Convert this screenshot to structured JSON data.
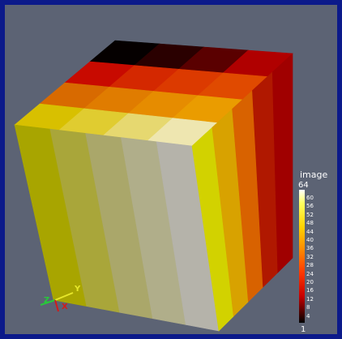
{
  "colorbar": {
    "title": "image",
    "max_label": "64",
    "min_label": "1",
    "ticks": [
      "60",
      "56",
      "52",
      "48",
      "44",
      "40",
      "36",
      "32",
      "28",
      "24",
      "20",
      "16",
      "12",
      "8",
      "4"
    ],
    "range": [
      1,
      64
    ]
  },
  "axes": {
    "y": "Y",
    "z": "Z",
    "x": "X"
  },
  "colors": {
    "frame": "#0c1a8a",
    "background": "#5c6374",
    "x_axis": "#d11b1b",
    "y_axis": "#e6e62a",
    "z_axis": "#27c83a"
  },
  "top_face_rows": [
    [
      "#050000",
      "#2a0000",
      "#5a0000",
      "#b00000"
    ],
    [
      "#c80a00",
      "#d42800",
      "#dc3a00",
      "#e04a00"
    ],
    [
      "#d86a00",
      "#e07c00",
      "#e68c00",
      "#ea9c00"
    ],
    [
      "#d8c000",
      "#e0cc30",
      "#e6d870",
      "#eee6b0"
    ]
  ],
  "front_face_columns": [
    "#a8a500",
    "#a9a63a",
    "#aaa76a",
    "#b0ae8a",
    "#b5b3aa"
  ],
  "right_face_columns": [
    "#d2d200",
    "#d8a200",
    "#d86200",
    "#b01800",
    "#a00000"
  ]
}
